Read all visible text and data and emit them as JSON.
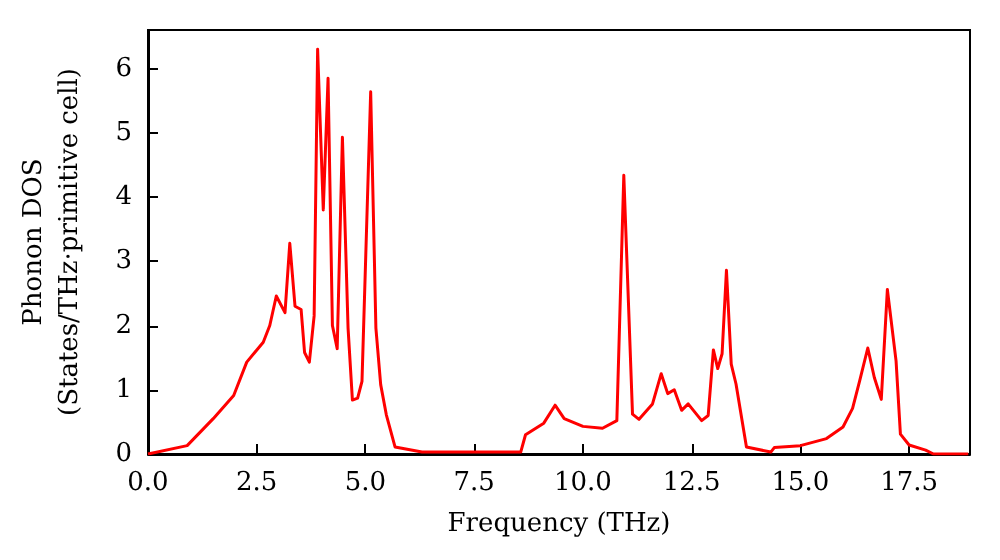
{
  "chart_data": {
    "type": "line",
    "xlabel": "Frequency (THz)",
    "ylabel": "Phonon DOS\n(States/THz·primitive cell)",
    "xlim": [
      0,
      18.9
    ],
    "ylim": [
      0,
      6.6
    ],
    "xticks": [
      {
        "value": 0,
        "label": "0.0"
      },
      {
        "value": 2.5,
        "label": "2.5"
      },
      {
        "value": 5,
        "label": "5.0"
      },
      {
        "value": 7.5,
        "label": "7.5"
      },
      {
        "value": 10,
        "label": "10.0"
      },
      {
        "value": 12.5,
        "label": "12.5"
      },
      {
        "value": 15,
        "label": "15.0"
      },
      {
        "value": 17.5,
        "label": "17.5"
      }
    ],
    "yticks": [
      0,
      1,
      2,
      3,
      4,
      5,
      6
    ],
    "grid": false,
    "marker": "none",
    "line_style": "solid",
    "series": [
      {
        "color": "#ff0000",
        "x": [
          0,
          0.9,
          1.5,
          1.97,
          2.27,
          2.65,
          2.8,
          2.95,
          3.15,
          3.26,
          3.38,
          3.52,
          3.6,
          3.71,
          3.82,
          3.9,
          4.03,
          4.14,
          4.24,
          4.35,
          4.47,
          4.6,
          4.7,
          4.82,
          4.92,
          5.12,
          5.24,
          5.35,
          5.48,
          5.68,
          6.3,
          8.57,
          8.68,
          9.1,
          9.36,
          9.57,
          10.0,
          10.45,
          10.78,
          10.94,
          11.14,
          11.29,
          11.6,
          11.8,
          11.95,
          12.1,
          12.27,
          12.42,
          12.73,
          12.88,
          13.0,
          13.1,
          13.2,
          13.3,
          13.41,
          13.52,
          13.76,
          14.32,
          14.4,
          15.0,
          15.6,
          15.98,
          16.2,
          16.36,
          16.55,
          16.7,
          16.86,
          17.0,
          17.2,
          17.3,
          17.5,
          17.88,
          18.06,
          18.86
        ],
        "values": [
          0,
          0.13,
          0.55,
          0.91,
          1.43,
          1.74,
          2.0,
          2.46,
          2.2,
          3.28,
          2.3,
          2.25,
          1.58,
          1.43,
          2.15,
          6.3,
          3.8,
          5.85,
          2.0,
          1.64,
          4.93,
          1.96,
          0.84,
          0.87,
          1.13,
          5.64,
          1.96,
          1.08,
          0.61,
          0.11,
          0.03,
          0.03,
          0.3,
          0.48,
          0.76,
          0.55,
          0.43,
          0.4,
          0.52,
          4.34,
          0.62,
          0.54,
          0.78,
          1.25,
          0.94,
          1.0,
          0.68,
          0.78,
          0.52,
          0.6,
          1.62,
          1.33,
          1.56,
          2.86,
          1.4,
          1.09,
          0.11,
          0.03,
          0.1,
          0.13,
          0.24,
          0.42,
          0.71,
          1.13,
          1.65,
          1.19,
          0.85,
          2.56,
          1.45,
          0.31,
          0.14,
          0.06,
          0,
          0
        ]
      }
    ]
  }
}
